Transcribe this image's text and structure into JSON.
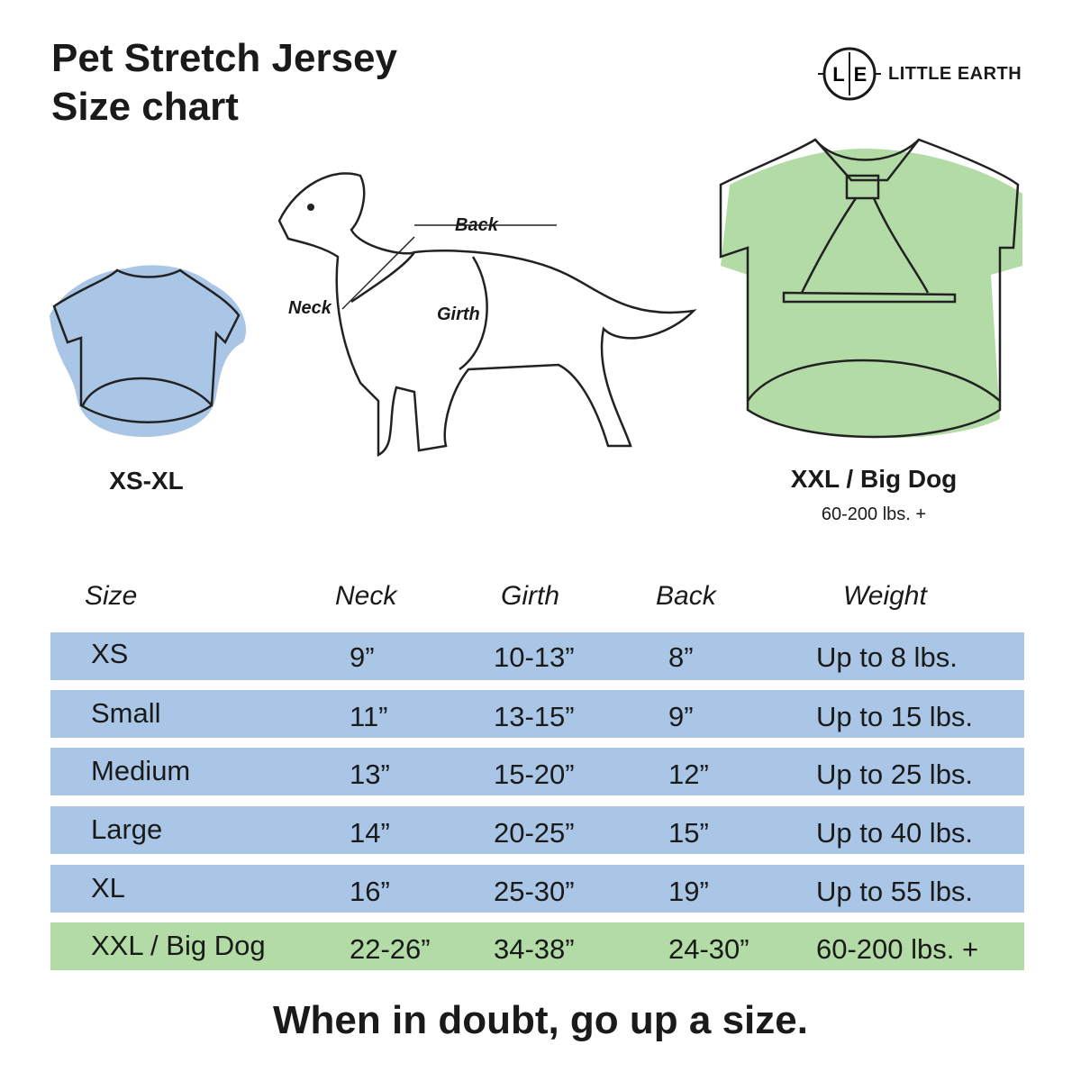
{
  "title": {
    "line1": "Pet Stretch Jersey",
    "line2": "Size chart"
  },
  "brand": {
    "name": "LITTLE EARTH",
    "monogram_left": "L",
    "monogram_right": "E"
  },
  "illustrations": {
    "small_shirt": {
      "caption": "XS-XL",
      "color": "#aac6e6"
    },
    "dog": {
      "labels": {
        "back": "Back",
        "neck": "Neck",
        "girth": "Girth"
      }
    },
    "big_shirt": {
      "caption": "XXL / Big Dog",
      "subcaption": "60-200 lbs. +",
      "color": "#b2dba5"
    }
  },
  "table": {
    "headers": [
      "Size",
      "Neck",
      "Girth",
      "Back",
      "Weight"
    ],
    "rows": [
      {
        "size": "XS",
        "neck": "9”",
        "girth": "10-13”",
        "back": "8”",
        "weight": "Up to 8 lbs."
      },
      {
        "size": "Small",
        "neck": "11”",
        "girth": "13-15”",
        "back": "9”",
        "weight": "Up to 15 lbs."
      },
      {
        "size": "Medium",
        "neck": "13”",
        "girth": "15-20”",
        "back": "12”",
        "weight": "Up to 25 lbs."
      },
      {
        "size": "Large",
        "neck": "14”",
        "girth": "20-25”",
        "back": "15”",
        "weight": "Up to 40 lbs."
      },
      {
        "size": "XL",
        "neck": "16”",
        "girth": "25-30”",
        "back": "19”",
        "weight": "Up to 55 lbs."
      },
      {
        "size": "XXL / Big Dog",
        "neck": "22-26”",
        "girth": "34-38”",
        "back": "24-30”",
        "weight": "60-200 lbs. +"
      }
    ]
  },
  "footer": "When in doubt, go up a size."
}
